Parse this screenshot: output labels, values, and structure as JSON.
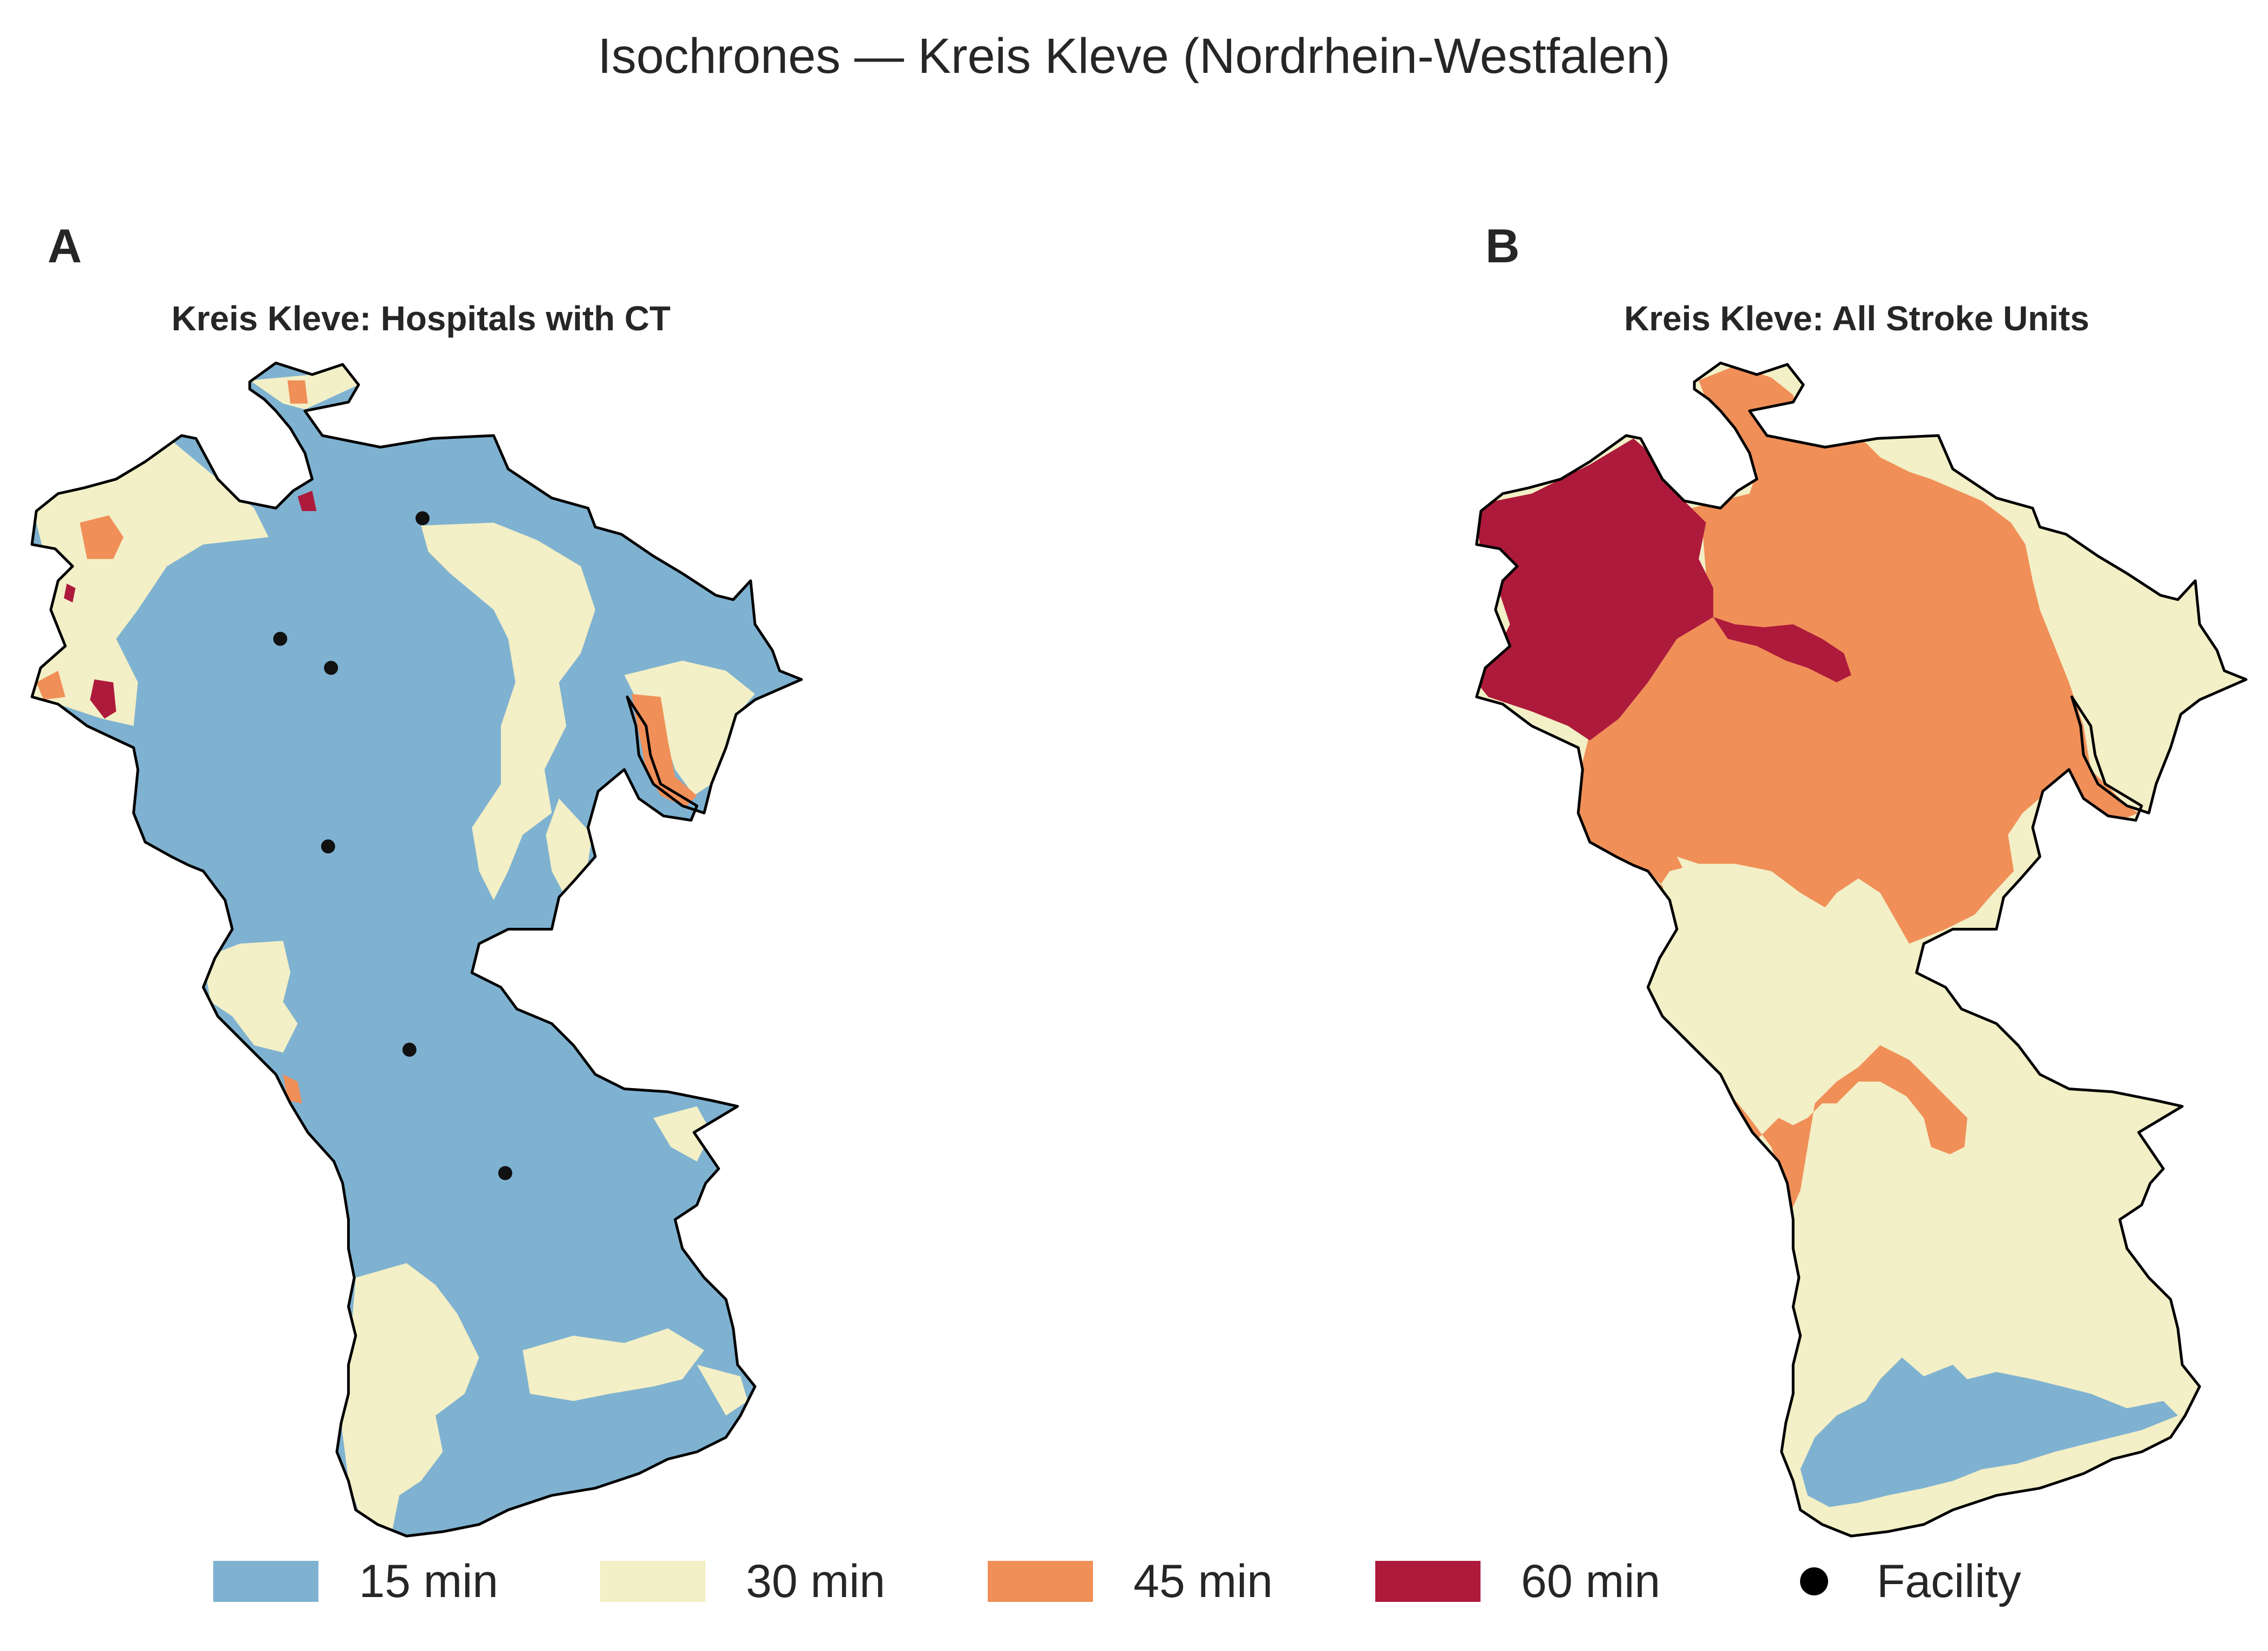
{
  "title": "Isochrones — Kreis Kleve (Nordrhein-Westfalen)",
  "panels": [
    {
      "letter": "A",
      "title": "Kreis Kleve: Hospitals with CT",
      "dominant_class": "15 min",
      "facilities_shown": 6
    },
    {
      "letter": "B",
      "title": "Kreis Kleve: All Stroke Units",
      "dominant_class": "45 min",
      "facilities_shown": 0
    }
  ],
  "legend": {
    "items": [
      {
        "label": "15 min",
        "color": "#7fb2d1"
      },
      {
        "label": "30 min",
        "color": "#f3efc6"
      },
      {
        "label": "45 min",
        "color": "#f08f58"
      },
      {
        "label": "60 min",
        "color": "#ad1a3b"
      }
    ],
    "facility_label": "Facility"
  },
  "colors": {
    "c15": "#7fb2d1",
    "c30": "#f3efc6",
    "c45": "#f08f58",
    "c60": "#ad1a3b",
    "outline": "#000000",
    "facility": "#111111"
  }
}
